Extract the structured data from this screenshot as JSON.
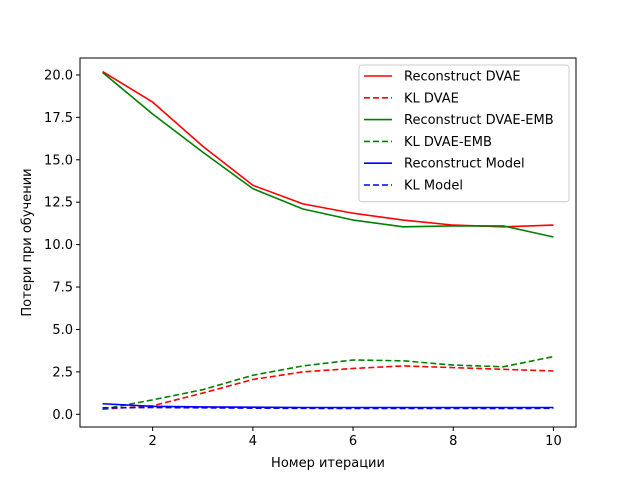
{
  "chart_data": {
    "type": "line",
    "xlabel": "Номер итерации",
    "ylabel": "Потери при обучении",
    "xlim": [
      0.55,
      10.45
    ],
    "ylim": [
      -0.75,
      21.0
    ],
    "xticks": [
      2,
      4,
      6,
      8,
      10
    ],
    "yticks": [
      0.0,
      2.5,
      5.0,
      7.5,
      10.0,
      12.5,
      15.0,
      17.5,
      20.0
    ],
    "ytick_labels": [
      "0.0",
      "2.5",
      "5.0",
      "7.5",
      "10.0",
      "12.5",
      "15.0",
      "17.5",
      "20.0"
    ],
    "xtick_labels": [
      "2",
      "4",
      "6",
      "8",
      "10"
    ],
    "grid": false,
    "legend_position": "top-right",
    "x": [
      1,
      2,
      3,
      4,
      5,
      6,
      7,
      8,
      9,
      10
    ],
    "series": [
      {
        "name": "Reconstruct DVAE",
        "color": "#ff0000",
        "dash": "solid",
        "values": [
          20.2,
          18.4,
          15.8,
          13.5,
          12.4,
          11.85,
          11.45,
          11.15,
          11.05,
          11.15
        ]
      },
      {
        "name": "KL DVAE",
        "color": "#ff0000",
        "dash": "dashed",
        "values": [
          0.3,
          0.5,
          1.25,
          2.05,
          2.5,
          2.7,
          2.85,
          2.75,
          2.65,
          2.55
        ]
      },
      {
        "name": "Reconstruct DVAE-EMB",
        "color": "#008000",
        "dash": "solid",
        "values": [
          20.15,
          17.7,
          15.45,
          13.3,
          12.1,
          11.45,
          11.05,
          11.1,
          11.1,
          10.45
        ]
      },
      {
        "name": "KL DVAE-EMB",
        "color": "#008000",
        "dash": "dashed",
        "values": [
          0.3,
          0.85,
          1.45,
          2.3,
          2.85,
          3.2,
          3.15,
          2.9,
          2.8,
          3.4
        ]
      },
      {
        "name": "Reconstruct Model",
        "color": "#0000ff",
        "dash": "solid",
        "values": [
          0.62,
          0.47,
          0.43,
          0.42,
          0.4,
          0.4,
          0.4,
          0.4,
          0.4,
          0.4
        ]
      },
      {
        "name": "KL Model",
        "color": "#0000ff",
        "dash": "dashed",
        "values": [
          0.38,
          0.4,
          0.38,
          0.36,
          0.35,
          0.34,
          0.34,
          0.34,
          0.34,
          0.35
        ]
      }
    ]
  }
}
